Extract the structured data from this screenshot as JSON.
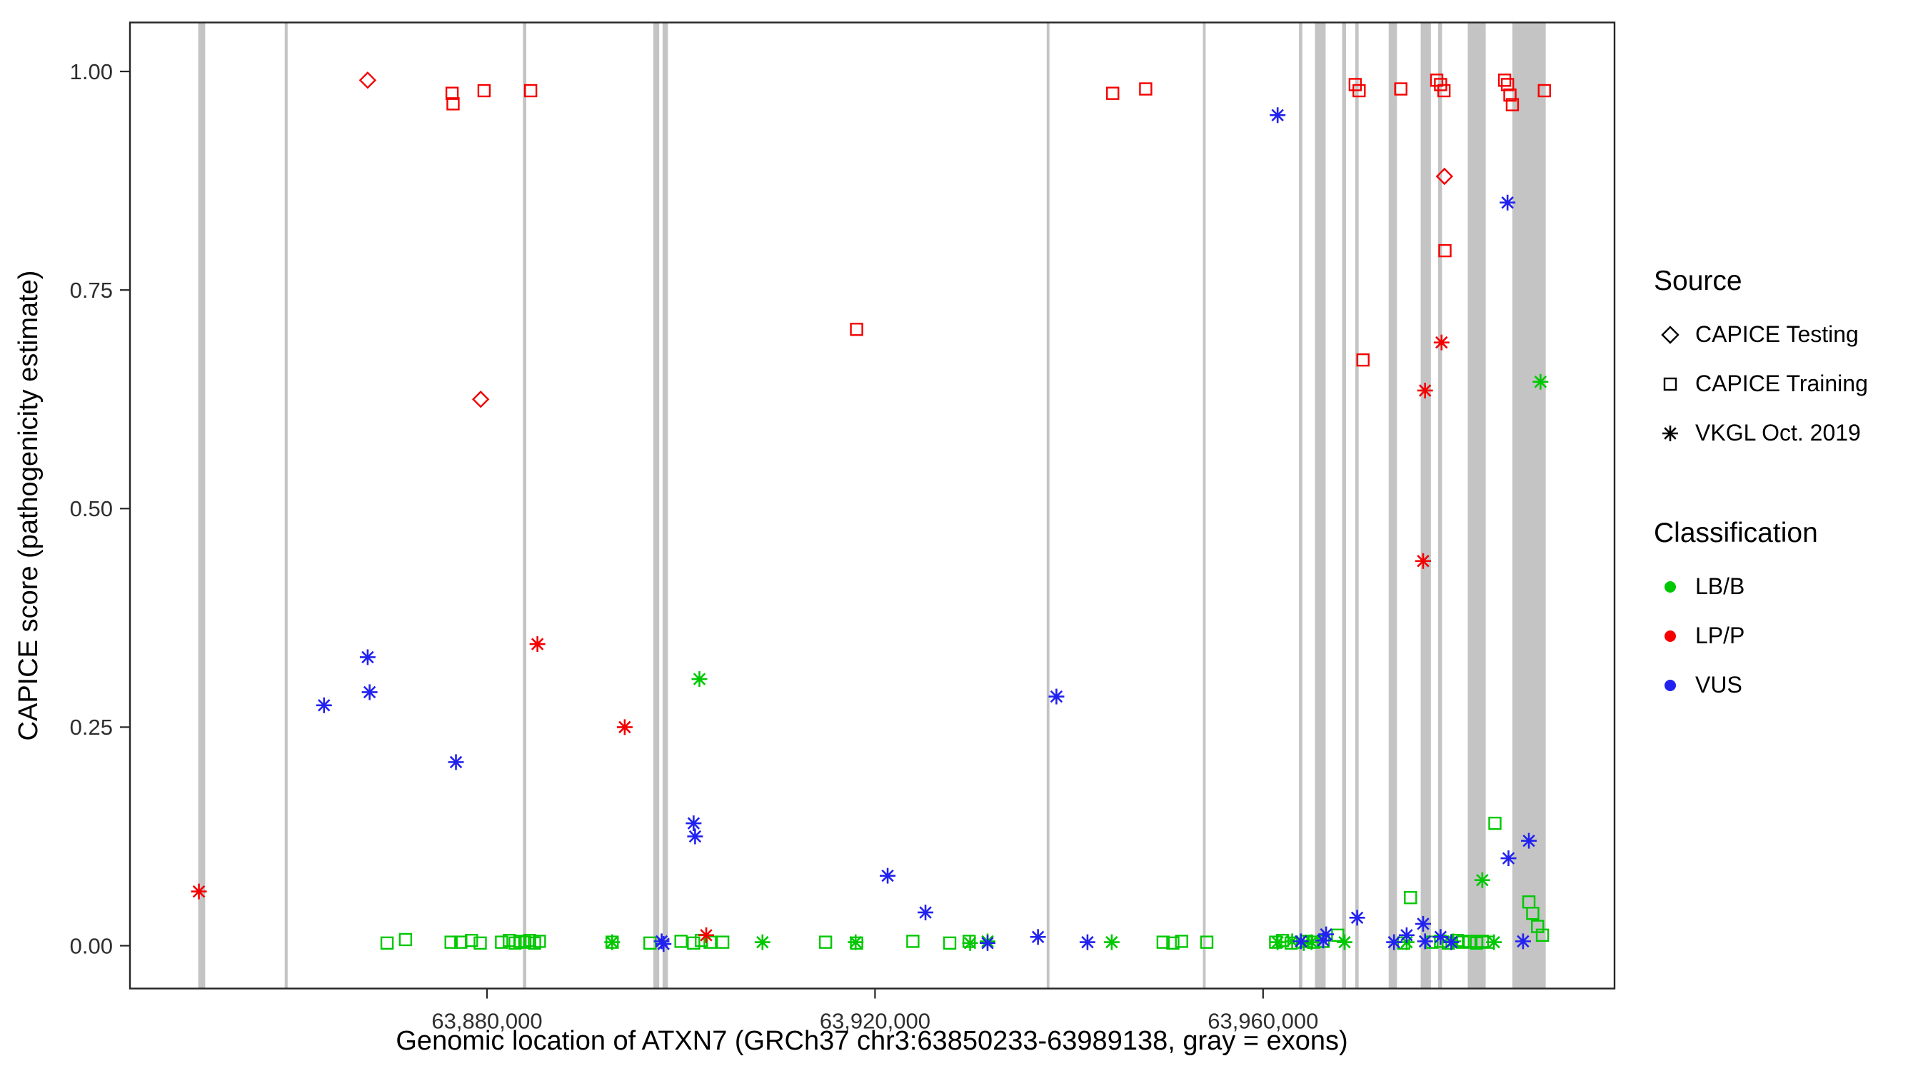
{
  "legend": {
    "source": {
      "title": "Source",
      "items": [
        {
          "label": "CAPICE Testing",
          "marker": "diamond"
        },
        {
          "label": "CAPICE Training",
          "marker": "square"
        },
        {
          "label": "VKGL Oct. 2019",
          "marker": "asterisk"
        }
      ]
    },
    "classification": {
      "title": "Classification",
      "items": [
        {
          "label": "LB/B",
          "color": "#00c800"
        },
        {
          "label": "LP/P",
          "color": "#f40000"
        },
        {
          "label": "VUS",
          "color": "#2121f0"
        }
      ]
    }
  },
  "chart_data": {
    "type": "scatter",
    "title": "",
    "xlabel": "Genomic location of ATXN7 (GRCh37 chr3:63850233-63989138, gray = exons)",
    "ylabel": "CAPICE score (pathogenicity estimate)",
    "legend_position": "right",
    "grid": false,
    "x_domain": [
      63843195,
      63996230
    ],
    "y_domain": [
      -0.049,
      1.056
    ],
    "x_ticks": [
      {
        "value": 63880000,
        "label": "63,880,000"
      },
      {
        "value": 63920000,
        "label": "63,920,000"
      },
      {
        "value": 63960000,
        "label": "63,960,000"
      }
    ],
    "y_ticks": [
      {
        "value": 0.0,
        "label": "0.00"
      },
      {
        "value": 0.25,
        "label": "0.25"
      },
      {
        "value": 0.5,
        "label": "0.50"
      },
      {
        "value": 0.75,
        "label": "0.75"
      },
      {
        "value": 1.0,
        "label": "1.00"
      }
    ],
    "exon_color": "#c4c4c4",
    "exons": [
      [
        63850233,
        63850950
      ],
      [
        63859150,
        63859450
      ],
      [
        63883700,
        63884050
      ],
      [
        63897150,
        63897750
      ],
      [
        63898100,
        63898650
      ],
      [
        63937700,
        63937980
      ],
      [
        63953800,
        63954080
      ],
      [
        63963700,
        63964050
      ],
      [
        63965350,
        63966450
      ],
      [
        63968150,
        63968550
      ],
      [
        63969500,
        63969850
      ],
      [
        63972950,
        63973800
      ],
      [
        63976250,
        63977300
      ],
      [
        63978050,
        63978450
      ],
      [
        63981100,
        63982950
      ],
      [
        63985700,
        63989138
      ]
    ],
    "colors": {
      "LB/B": "#00c800",
      "LP/P": "#f40000",
      "VUS": "#2121f0"
    },
    "markers": {
      "testing": "diamond",
      "training": "square",
      "vkgl": "asterisk"
    },
    "source_labels": {
      "testing": "CAPICE Testing",
      "training": "CAPICE Training",
      "vkgl": "VKGL Oct. 2019"
    },
    "points": [
      [
        "testing",
        "LP/P",
        63867700,
        0.99
      ],
      [
        "testing",
        "LP/P",
        63879350,
        0.625
      ],
      [
        "testing",
        "LP/P",
        63978700,
        0.88
      ],
      [
        "training",
        "LP/P",
        63876400,
        0.975
      ],
      [
        "training",
        "LP/P",
        63876500,
        0.963
      ],
      [
        "training",
        "LP/P",
        63879700,
        0.978
      ],
      [
        "training",
        "LP/P",
        63884500,
        0.978
      ],
      [
        "training",
        "LP/P",
        63918100,
        0.705
      ],
      [
        "training",
        "LP/P",
        63944500,
        0.975
      ],
      [
        "training",
        "LP/P",
        63947900,
        0.98
      ],
      [
        "training",
        "LP/P",
        63969500,
        0.985
      ],
      [
        "training",
        "LP/P",
        63969900,
        0.978
      ],
      [
        "training",
        "LP/P",
        63970300,
        0.67
      ],
      [
        "training",
        "LP/P",
        63974200,
        0.98
      ],
      [
        "training",
        "LP/P",
        63977900,
        0.99
      ],
      [
        "training",
        "LP/P",
        63978300,
        0.985
      ],
      [
        "training",
        "LP/P",
        63978650,
        0.978
      ],
      [
        "training",
        "LP/P",
        63978750,
        0.795
      ],
      [
        "training",
        "LP/P",
        63984900,
        0.99
      ],
      [
        "training",
        "LP/P",
        63985200,
        0.985
      ],
      [
        "training",
        "LP/P",
        63985450,
        0.973
      ],
      [
        "training",
        "LP/P",
        63985700,
        0.962
      ],
      [
        "training",
        "LP/P",
        63989000,
        0.978
      ],
      [
        "training",
        "LB/B",
        63869700,
        0.003
      ],
      [
        "training",
        "LB/B",
        63871600,
        0.007
      ],
      [
        "training",
        "LB/B",
        63876300,
        0.004
      ],
      [
        "training",
        "LB/B",
        63877300,
        0.004
      ],
      [
        "training",
        "LB/B",
        63878400,
        0.006
      ],
      [
        "training",
        "LB/B",
        63879300,
        0.003
      ],
      [
        "training",
        "LB/B",
        63881500,
        0.004
      ],
      [
        "training",
        "LB/B",
        63882300,
        0.006
      ],
      [
        "training",
        "LB/B",
        63882900,
        0.003
      ],
      [
        "training",
        "LB/B",
        63883400,
        0.005
      ],
      [
        "training",
        "LB/B",
        63883900,
        0.004
      ],
      [
        "training",
        "LB/B",
        63884400,
        0.006
      ],
      [
        "training",
        "LB/B",
        63884900,
        0.003
      ],
      [
        "training",
        "LB/B",
        63885400,
        0.005
      ],
      [
        "training",
        "LB/B",
        63892900,
        0.004
      ],
      [
        "training",
        "LB/B",
        63896800,
        0.003
      ],
      [
        "training",
        "LB/B",
        63900000,
        0.005
      ],
      [
        "training",
        "LB/B",
        63901300,
        0.003
      ],
      [
        "training",
        "LB/B",
        63902100,
        0.006
      ],
      [
        "training",
        "LB/B",
        63903000,
        0.004
      ],
      [
        "training",
        "LB/B",
        63904300,
        0.004
      ],
      [
        "training",
        "LB/B",
        63914900,
        0.004
      ],
      [
        "training",
        "LB/B",
        63918100,
        0.003
      ],
      [
        "training",
        "LB/B",
        63923900,
        0.005
      ],
      [
        "training",
        "LB/B",
        63927700,
        0.003
      ],
      [
        "training",
        "LB/B",
        63929700,
        0.005
      ],
      [
        "training",
        "LB/B",
        63949700,
        0.004
      ],
      [
        "training",
        "LB/B",
        63950700,
        0.003
      ],
      [
        "training",
        "LB/B",
        63951600,
        0.005
      ],
      [
        "training",
        "LB/B",
        63954200,
        0.004
      ],
      [
        "training",
        "LB/B",
        63961300,
        0.004
      ],
      [
        "training",
        "LB/B",
        63962000,
        0.006
      ],
      [
        "training",
        "LB/B",
        63962900,
        0.003
      ],
      [
        "training",
        "LB/B",
        63964500,
        0.005
      ],
      [
        "training",
        "LB/B",
        63965200,
        0.004
      ],
      [
        "training",
        "LB/B",
        63966200,
        0.005
      ],
      [
        "training",
        "LB/B",
        63967700,
        0.012
      ],
      [
        "training",
        "LB/B",
        63974500,
        0.003
      ],
      [
        "training",
        "LB/B",
        63975200,
        0.055
      ],
      [
        "training",
        "LB/B",
        63977400,
        0.004
      ],
      [
        "training",
        "LB/B",
        63978300,
        0.005
      ],
      [
        "training",
        "LB/B",
        63979100,
        0.003
      ],
      [
        "training",
        "LB/B",
        63980000,
        0.006
      ],
      [
        "training",
        "LB/B",
        63980600,
        0.004
      ],
      [
        "training",
        "LB/B",
        63981300,
        0.005
      ],
      [
        "training",
        "LB/B",
        63982000,
        0.003
      ],
      [
        "training",
        "LB/B",
        63982600,
        0.005
      ],
      [
        "training",
        "LB/B",
        63983200,
        0.004
      ],
      [
        "training",
        "LB/B",
        63983900,
        0.14
      ],
      [
        "training",
        "LB/B",
        63987400,
        0.05
      ],
      [
        "training",
        "LB/B",
        63987800,
        0.037
      ],
      [
        "training",
        "LB/B",
        63988300,
        0.022
      ],
      [
        "training",
        "LB/B",
        63988800,
        0.012
      ],
      [
        "vkgl",
        "LB/B",
        63892900,
        0.004
      ],
      [
        "vkgl",
        "LB/B",
        63901900,
        0.305
      ],
      [
        "vkgl",
        "LB/B",
        63908400,
        0.004
      ],
      [
        "vkgl",
        "LB/B",
        63918000,
        0.004
      ],
      [
        "vkgl",
        "LB/B",
        63929800,
        0.003
      ],
      [
        "vkgl",
        "LB/B",
        63931600,
        0.005
      ],
      [
        "vkgl",
        "LB/B",
        63944400,
        0.004
      ],
      [
        "vkgl",
        "LB/B",
        63961500,
        0.004
      ],
      [
        "vkgl",
        "LB/B",
        63963000,
        0.005
      ],
      [
        "vkgl",
        "LB/B",
        63964200,
        0.003
      ],
      [
        "vkgl",
        "LB/B",
        63965000,
        0.004
      ],
      [
        "vkgl",
        "LB/B",
        63968400,
        0.004
      ],
      [
        "vkgl",
        "LB/B",
        63974800,
        0.004
      ],
      [
        "vkgl",
        "LB/B",
        63979600,
        0.005
      ],
      [
        "vkgl",
        "LB/B",
        63982600,
        0.075
      ],
      [
        "vkgl",
        "LB/B",
        63983800,
        0.004
      ],
      [
        "vkgl",
        "LB/B",
        63988600,
        0.645
      ],
      [
        "vkgl",
        "LP/P",
        63850300,
        0.062
      ],
      [
        "vkgl",
        "LP/P",
        63885200,
        0.345
      ],
      [
        "vkgl",
        "LP/P",
        63894200,
        0.25
      ],
      [
        "vkgl",
        "LP/P",
        63902600,
        0.012
      ],
      [
        "vkgl",
        "LP/P",
        63976500,
        0.44
      ],
      [
        "vkgl",
        "LP/P",
        63976700,
        0.635
      ],
      [
        "vkgl",
        "LP/P",
        63978400,
        0.69
      ],
      [
        "vkgl",
        "VUS",
        63863200,
        0.275
      ],
      [
        "vkgl",
        "VUS",
        63867700,
        0.33
      ],
      [
        "vkgl",
        "VUS",
        63867900,
        0.29
      ],
      [
        "vkgl",
        "VUS",
        63876800,
        0.21
      ],
      [
        "vkgl",
        "VUS",
        63898000,
        0.005
      ],
      [
        "vkgl",
        "VUS",
        63898200,
        0.002
      ],
      [
        "vkgl",
        "VUS",
        63901300,
        0.14
      ],
      [
        "vkgl",
        "VUS",
        63901450,
        0.125
      ],
      [
        "vkgl",
        "VUS",
        63921300,
        0.08
      ],
      [
        "vkgl",
        "VUS",
        63925200,
        0.038
      ],
      [
        "vkgl",
        "VUS",
        63931600,
        0.003
      ],
      [
        "vkgl",
        "VUS",
        63936800,
        0.01
      ],
      [
        "vkgl",
        "VUS",
        63938700,
        0.285
      ],
      [
        "vkgl",
        "VUS",
        63941900,
        0.004
      ],
      [
        "vkgl",
        "VUS",
        63961500,
        0.95
      ],
      [
        "vkgl",
        "VUS",
        63963900,
        0.005
      ],
      [
        "vkgl",
        "VUS",
        63966200,
        0.006
      ],
      [
        "vkgl",
        "VUS",
        63966500,
        0.013
      ],
      [
        "vkgl",
        "VUS",
        63969700,
        0.032
      ],
      [
        "vkgl",
        "VUS",
        63973500,
        0.004
      ],
      [
        "vkgl",
        "VUS",
        63974800,
        0.012
      ],
      [
        "vkgl",
        "VUS",
        63976500,
        0.025
      ],
      [
        "vkgl",
        "VUS",
        63976700,
        0.005
      ],
      [
        "vkgl",
        "VUS",
        63978300,
        0.01
      ],
      [
        "vkgl",
        "VUS",
        63979400,
        0.004
      ],
      [
        "vkgl",
        "VUS",
        63985200,
        0.85
      ],
      [
        "vkgl",
        "VUS",
        63985300,
        0.1
      ],
      [
        "vkgl",
        "VUS",
        63986800,
        0.005
      ],
      [
        "vkgl",
        "VUS",
        63987400,
        0.12
      ]
    ]
  }
}
